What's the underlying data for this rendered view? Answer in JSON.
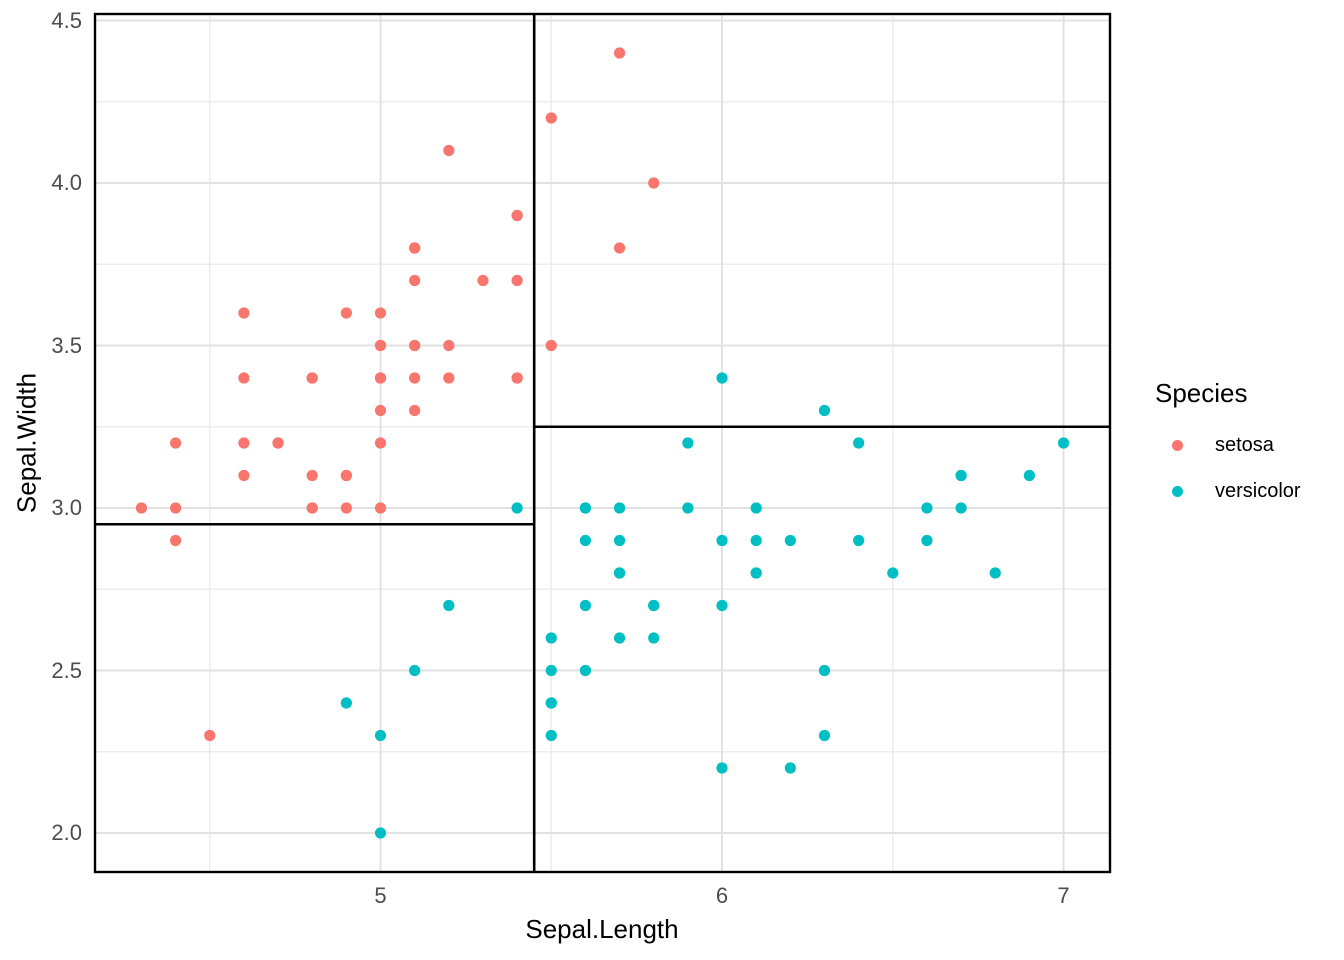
{
  "style": {
    "background": "#ffffff",
    "grid_major_color": "#e2e2e2",
    "grid_minor_color": "#ededed",
    "panel_border_color": "#000000",
    "partition_line_color": "#000000",
    "tick_text_color": "#4d4d4d",
    "title_text_color": "#000000",
    "setosa_color": "#F8766D",
    "versicolor_color": "#00BFC4"
  },
  "chart_data": {
    "type": "scatter",
    "title": "",
    "xlabel": "Sepal.Length",
    "ylabel": "Sepal.Width",
    "x_domain": [
      4.164,
      7.136
    ],
    "y_domain": [
      1.88,
      4.52
    ],
    "x_ticks": {
      "major": [
        5,
        6,
        7
      ],
      "labels": [
        "5",
        "6",
        "7"
      ],
      "minor": [
        4.5,
        5.5,
        6.5
      ]
    },
    "y_ticks": {
      "major": [
        2.0,
        2.5,
        3.0,
        3.5,
        4.0,
        4.5
      ],
      "labels": [
        "2.0",
        "2.5",
        "3.0",
        "3.5",
        "4.0",
        "4.5"
      ],
      "minor": [
        2.25,
        2.75,
        3.25,
        3.75,
        4.25
      ]
    },
    "grid": true,
    "legend": {
      "title": "Species",
      "position": "right",
      "entries": [
        {
          "label": "setosa",
          "color": "#F8766D"
        },
        {
          "label": "versicolor",
          "color": "#00BFC4"
        }
      ]
    },
    "partitions": [
      {
        "orientation": "vertical",
        "x": 5.45,
        "y_min": 1.88,
        "y_max": 4.52
      },
      {
        "orientation": "horizontal",
        "y": 2.95,
        "x_min": 4.164,
        "x_max": 5.45
      },
      {
        "orientation": "horizontal",
        "y": 3.25,
        "x_min": 5.45,
        "x_max": 7.136
      }
    ],
    "series": [
      {
        "name": "setosa",
        "color": "#F8766D",
        "points": [
          [
            5.1,
            3.5
          ],
          [
            4.9,
            3.0
          ],
          [
            4.7,
            3.2
          ],
          [
            4.6,
            3.1
          ],
          [
            5.0,
            3.6
          ],
          [
            5.4,
            3.9
          ],
          [
            4.6,
            3.4
          ],
          [
            5.0,
            3.4
          ],
          [
            4.4,
            2.9
          ],
          [
            4.9,
            3.1
          ],
          [
            5.4,
            3.7
          ],
          [
            4.8,
            3.4
          ],
          [
            4.8,
            3.0
          ],
          [
            4.3,
            3.0
          ],
          [
            5.8,
            4.0
          ],
          [
            5.7,
            4.4
          ],
          [
            5.4,
            3.9
          ],
          [
            5.1,
            3.5
          ],
          [
            5.7,
            3.8
          ],
          [
            5.1,
            3.8
          ],
          [
            5.4,
            3.4
          ],
          [
            5.1,
            3.7
          ],
          [
            4.6,
            3.6
          ],
          [
            5.1,
            3.3
          ],
          [
            4.8,
            3.4
          ],
          [
            5.0,
            3.0
          ],
          [
            5.0,
            3.4
          ],
          [
            5.2,
            3.5
          ],
          [
            5.2,
            3.4
          ],
          [
            4.7,
            3.2
          ],
          [
            4.8,
            3.1
          ],
          [
            5.4,
            3.4
          ],
          [
            5.2,
            4.1
          ],
          [
            5.5,
            4.2
          ],
          [
            4.9,
            3.1
          ],
          [
            5.0,
            3.2
          ],
          [
            5.5,
            3.5
          ],
          [
            4.9,
            3.6
          ],
          [
            4.4,
            3.0
          ],
          [
            5.1,
            3.4
          ],
          [
            5.0,
            3.5
          ],
          [
            4.5,
            2.3
          ],
          [
            4.4,
            3.2
          ],
          [
            5.0,
            3.5
          ],
          [
            5.1,
            3.8
          ],
          [
            4.8,
            3.0
          ],
          [
            5.1,
            3.8
          ],
          [
            4.6,
            3.2
          ],
          [
            5.3,
            3.7
          ],
          [
            5.0,
            3.3
          ]
        ]
      },
      {
        "name": "versicolor",
        "color": "#00BFC4",
        "points": [
          [
            7.0,
            3.2
          ],
          [
            6.4,
            3.2
          ],
          [
            6.9,
            3.1
          ],
          [
            5.5,
            2.3
          ],
          [
            6.5,
            2.8
          ],
          [
            5.7,
            2.8
          ],
          [
            6.3,
            3.3
          ],
          [
            4.9,
            2.4
          ],
          [
            6.6,
            2.9
          ],
          [
            5.2,
            2.7
          ],
          [
            5.0,
            2.0
          ],
          [
            5.9,
            3.0
          ],
          [
            6.0,
            2.2
          ],
          [
            6.1,
            2.9
          ],
          [
            5.6,
            2.9
          ],
          [
            6.7,
            3.1
          ],
          [
            5.6,
            3.0
          ],
          [
            5.8,
            2.7
          ],
          [
            6.2,
            2.2
          ],
          [
            5.6,
            2.5
          ],
          [
            5.9,
            3.2
          ],
          [
            6.1,
            2.8
          ],
          [
            6.3,
            2.5
          ],
          [
            6.1,
            2.8
          ],
          [
            6.4,
            2.9
          ],
          [
            6.6,
            3.0
          ],
          [
            6.8,
            2.8
          ],
          [
            6.7,
            3.0
          ],
          [
            6.0,
            2.9
          ],
          [
            5.7,
            2.6
          ],
          [
            5.5,
            2.4
          ],
          [
            5.5,
            2.4
          ],
          [
            5.8,
            2.7
          ],
          [
            6.0,
            2.7
          ],
          [
            5.4,
            3.0
          ],
          [
            6.0,
            3.4
          ],
          [
            6.7,
            3.1
          ],
          [
            6.3,
            2.3
          ],
          [
            5.6,
            3.0
          ],
          [
            5.5,
            2.5
          ],
          [
            5.5,
            2.6
          ],
          [
            6.1,
            3.0
          ],
          [
            5.8,
            2.6
          ],
          [
            5.0,
            2.3
          ],
          [
            5.6,
            2.7
          ],
          [
            5.7,
            3.0
          ],
          [
            5.7,
            2.9
          ],
          [
            6.2,
            2.9
          ],
          [
            5.1,
            2.5
          ],
          [
            5.7,
            2.8
          ]
        ]
      }
    ]
  }
}
